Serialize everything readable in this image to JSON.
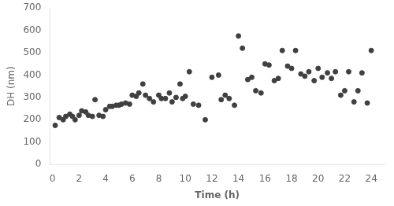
{
  "chart_data": {
    "type": "scatter",
    "x": [
      0.2,
      0.5,
      0.8,
      1.0,
      1.3,
      1.5,
      1.7,
      2.0,
      2.2,
      2.5,
      2.7,
      3.0,
      3.2,
      3.5,
      3.8,
      4.0,
      4.3,
      4.5,
      4.8,
      5.0,
      5.2,
      5.5,
      5.8,
      6.0,
      6.3,
      6.5,
      6.8,
      7.0,
      7.3,
      7.6,
      8.0,
      8.2,
      8.5,
      8.8,
      9.0,
      9.3,
      9.6,
      9.8,
      10.0,
      10.3,
      10.6,
      11.0,
      11.5,
      12.0,
      12.5,
      12.7,
      13.0,
      13.3,
      13.7,
      14.0,
      14.3,
      14.7,
      15.0,
      15.3,
      15.7,
      16.0,
      16.3,
      16.7,
      17.0,
      17.3,
      17.7,
      18.0,
      18.3,
      18.7,
      19.0,
      19.3,
      19.7,
      20.0,
      20.3,
      20.7,
      21.0,
      21.3,
      21.7,
      22.0,
      22.3,
      22.7,
      23.0,
      23.3,
      23.7,
      24.0
    ],
    "values": [
      175,
      210,
      200,
      215,
      225,
      215,
      200,
      220,
      240,
      235,
      220,
      215,
      290,
      220,
      215,
      245,
      260,
      260,
      265,
      265,
      270,
      275,
      270,
      310,
      305,
      320,
      360,
      310,
      295,
      280,
      310,
      295,
      295,
      320,
      280,
      300,
      360,
      295,
      305,
      415,
      270,
      265,
      200,
      390,
      400,
      290,
      310,
      295,
      265,
      575,
      520,
      380,
      390,
      330,
      320,
      450,
      445,
      375,
      385,
      510,
      440,
      430,
      510,
      405,
      395,
      415,
      375,
      430,
      390,
      410,
      385,
      415,
      310,
      330,
      415,
      280,
      330,
      410,
      275,
      510
    ],
    "color": "#404040",
    "xlabel": "Time (h)",
    "ylabel": "DH (nm)",
    "xlim": [
      -0.2,
      25
    ],
    "ylim": [
      0,
      700
    ],
    "xticks": [
      0,
      2,
      4,
      6,
      8,
      10,
      12,
      14,
      16,
      18,
      20,
      22,
      24
    ],
    "yticks": [
      0,
      100,
      200,
      300,
      400,
      500,
      600,
      700
    ],
    "grid": false
  }
}
